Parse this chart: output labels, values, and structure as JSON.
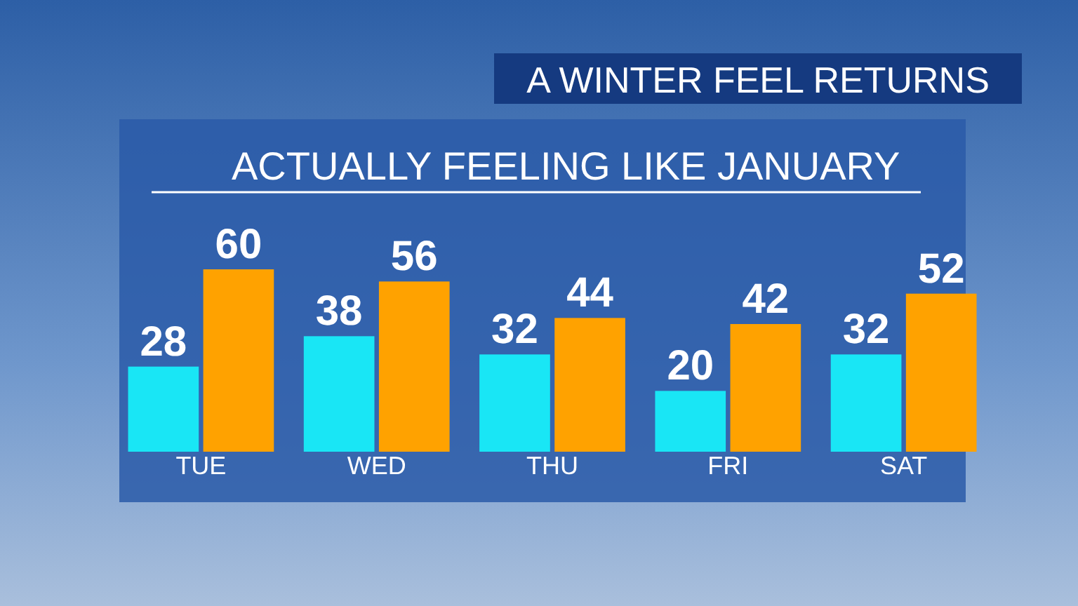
{
  "chart_data": {
    "type": "bar",
    "title": "A WINTER FEEL RETURNS",
    "subtitle": "ACTUALLY FEELING LIKE JANUARY",
    "categories": [
      "TUE",
      "WED",
      "THU",
      "FRI",
      "SAT"
    ],
    "series": [
      {
        "color": "#19e6f5",
        "values": [
          28,
          38,
          32,
          20,
          32
        ]
      },
      {
        "color": "#ffa200",
        "values": [
          60,
          56,
          44,
          42,
          52
        ]
      }
    ],
    "data_labels": true
  }
}
